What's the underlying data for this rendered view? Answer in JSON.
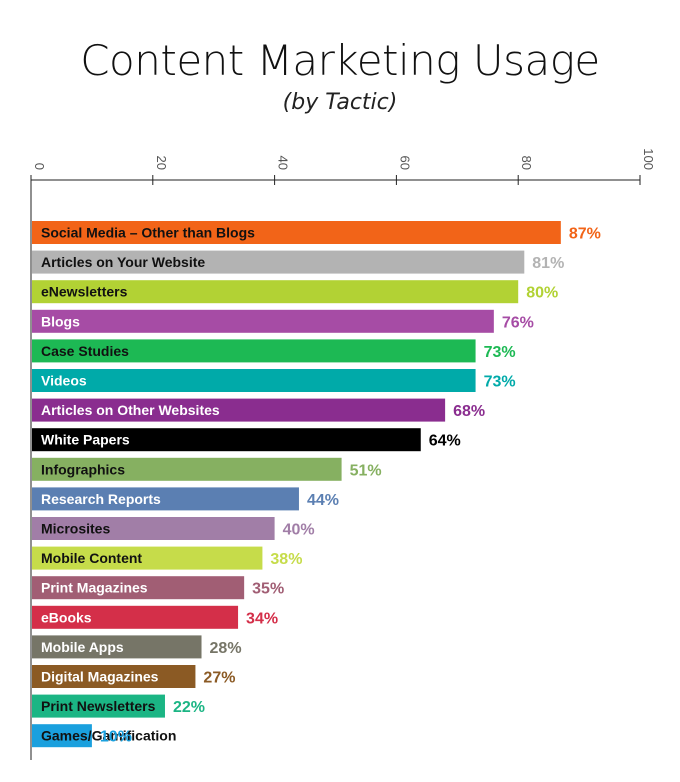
{
  "chart_data": {
    "type": "bar",
    "orientation": "horizontal",
    "title": "Content Marketing Usage",
    "subtitle": "(by Tactic)",
    "xlabel": "",
    "ylabel": "",
    "xlim": [
      0,
      100
    ],
    "ticks": [
      "0",
      "20",
      "40",
      "60",
      "80",
      "100"
    ],
    "grid": false,
    "value_suffix": "%",
    "categories": [
      "Social Media – Other than Blogs",
      "Articles on Your Website",
      "eNewsletters",
      "Blogs",
      "Case Studies",
      "Videos",
      "Articles on Other Websites",
      "White Papers",
      "Infographics",
      "Research Reports",
      "Microsites",
      "Mobile Content",
      "Print Magazines",
      "eBooks",
      "Mobile Apps",
      "Digital Magazines",
      "Print Newsletters",
      "Games/Gamification"
    ],
    "values": [
      87,
      81,
      80,
      76,
      73,
      73,
      68,
      64,
      51,
      44,
      40,
      38,
      35,
      34,
      28,
      27,
      22,
      10
    ],
    "value_labels": [
      "87%",
      "81%",
      "80%",
      "76%",
      "73%",
      "73%",
      "68%",
      "64%",
      "51%",
      "44%",
      "40%",
      "38%",
      "35%",
      "34%",
      "28%",
      "27%",
      "22%",
      "10%"
    ],
    "colors": [
      "#f26418",
      "#b3b3b3",
      "#b2d234",
      "#a64ca5",
      "#1db954",
      "#00aaa9",
      "#8a2d8f",
      "#000000",
      "#86b061",
      "#5b7fb2",
      "#a17ea7",
      "#c6dc4a",
      "#a15e74",
      "#d42f49",
      "#767567",
      "#8b5a24",
      "#1bb584",
      "#1aa0de"
    ],
    "label_colors": [
      "#111111",
      "#111111",
      "#111111",
      "#ffffff",
      "#111111",
      "#ffffff",
      "#ffffff",
      "#ffffff",
      "#111111",
      "#ffffff",
      "#111111",
      "#111111",
      "#ffffff",
      "#ffffff",
      "#ffffff",
      "#ffffff",
      "#111111",
      "#111111"
    ]
  }
}
